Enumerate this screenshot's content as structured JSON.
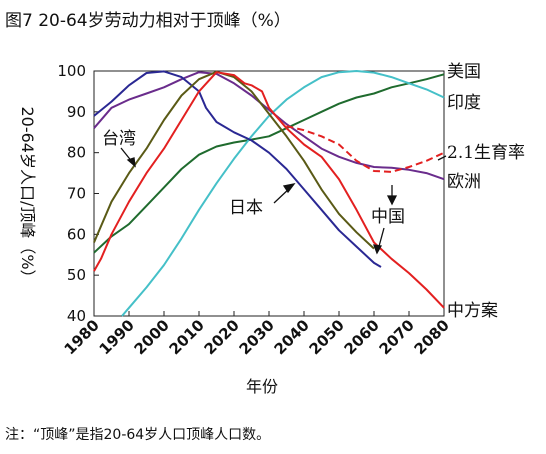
{
  "title": "图7 20-64岁劳动力相对于顶峰（%）",
  "note": "注：“顶峰”是指20-64岁人口顶峰人口数。",
  "chart_data": {
    "type": "line",
    "title": "图7 20-64岁劳动力相对于顶峰（%）",
    "xlabel": "年份",
    "ylabel": "20-64岁人口/顶峰（%）",
    "xlim": [
      1980,
      2080
    ],
    "ylim": [
      40,
      100
    ],
    "xticks": [
      "1980",
      "1990",
      "2000",
      "2010",
      "2020",
      "2030",
      "2040",
      "2050",
      "2060",
      "2070",
      "2080"
    ],
    "yticks": [
      "40",
      "50",
      "60",
      "70",
      "80",
      "90",
      "100"
    ],
    "grid": false,
    "series": [
      {
        "name": "美国",
        "color": "#1f6b2e",
        "dash": false,
        "points": [
          [
            1980,
            55.5
          ],
          [
            1985,
            59.5
          ],
          [
            1990,
            62.5
          ],
          [
            1995,
            67
          ],
          [
            2000,
            71.5
          ],
          [
            2005,
            76
          ],
          [
            2010,
            79.5
          ],
          [
            2015,
            81.5
          ],
          [
            2020,
            82.5
          ],
          [
            2025,
            83.2
          ],
          [
            2030,
            84
          ],
          [
            2035,
            86
          ],
          [
            2040,
            88
          ],
          [
            2045,
            90
          ],
          [
            2050,
            92
          ],
          [
            2055,
            93.5
          ],
          [
            2060,
            94.5
          ],
          [
            2065,
            96
          ],
          [
            2070,
            97
          ],
          [
            2075,
            98
          ],
          [
            2080,
            99.2
          ]
        ]
      },
      {
        "name": "印度",
        "color": "#45c0c8",
        "dash": false,
        "points": [
          [
            1988,
            40
          ],
          [
            1990,
            42
          ],
          [
            1995,
            47
          ],
          [
            2000,
            52.5
          ],
          [
            2005,
            59
          ],
          [
            2010,
            66
          ],
          [
            2015,
            72.5
          ],
          [
            2020,
            78.5
          ],
          [
            2025,
            84
          ],
          [
            2030,
            89
          ],
          [
            2035,
            93
          ],
          [
            2040,
            96
          ],
          [
            2045,
            98.5
          ],
          [
            2050,
            99.7
          ],
          [
            2055,
            100
          ],
          [
            2060,
            99.6
          ],
          [
            2065,
            98.5
          ],
          [
            2070,
            97
          ],
          [
            2075,
            95.5
          ],
          [
            2080,
            93.5
          ]
        ]
      },
      {
        "name": "欧洲",
        "color": "#6a2c8c",
        "dash": false,
        "points": [
          [
            1980,
            86
          ],
          [
            1985,
            91
          ],
          [
            1990,
            93
          ],
          [
            1995,
            94.5
          ],
          [
            2000,
            96
          ],
          [
            2005,
            98
          ],
          [
            2010,
            99.7
          ],
          [
            2015,
            99.3
          ],
          [
            2020,
            97
          ],
          [
            2025,
            94
          ],
          [
            2030,
            90.5
          ],
          [
            2035,
            87
          ],
          [
            2040,
            84
          ],
          [
            2045,
            81
          ],
          [
            2050,
            79
          ],
          [
            2055,
            77.5
          ],
          [
            2060,
            76.5
          ],
          [
            2065,
            76.3
          ],
          [
            2070,
            75.8
          ],
          [
            2075,
            75
          ],
          [
            2080,
            73.5
          ]
        ]
      },
      {
        "name": "日本",
        "color": "#2a2893",
        "dash": false,
        "points": [
          [
            1980,
            89
          ],
          [
            1985,
            92.5
          ],
          [
            1990,
            96.5
          ],
          [
            1995,
            99.5
          ],
          [
            2000,
            99.9
          ],
          [
            2005,
            98.5
          ],
          [
            2010,
            95
          ],
          [
            2012,
            91
          ],
          [
            2015,
            87.5
          ],
          [
            2020,
            85
          ],
          [
            2025,
            83
          ],
          [
            2030,
            80
          ],
          [
            2035,
            76
          ],
          [
            2040,
            71
          ],
          [
            2045,
            66
          ],
          [
            2050,
            61
          ],
          [
            2055,
            57
          ],
          [
            2060,
            53
          ],
          [
            2062,
            52
          ]
        ]
      },
      {
        "name": "台湾",
        "color": "#5a5a16",
        "dash": false,
        "points": [
          [
            1980,
            58
          ],
          [
            1985,
            68
          ],
          [
            1990,
            75
          ],
          [
            1995,
            81
          ],
          [
            2000,
            88
          ],
          [
            2005,
            94
          ],
          [
            2010,
            98
          ],
          [
            2015,
            99.8
          ],
          [
            2020,
            98.5
          ],
          [
            2025,
            95
          ],
          [
            2030,
            89.5
          ],
          [
            2035,
            84
          ],
          [
            2040,
            78
          ],
          [
            2045,
            71
          ],
          [
            2050,
            65
          ],
          [
            2055,
            60.5
          ],
          [
            2060,
            56.5
          ]
        ]
      },
      {
        "name": "中国",
        "color": "#e32020",
        "dash": false,
        "points": [
          [
            1980,
            51
          ],
          [
            1982,
            54
          ],
          [
            1985,
            60
          ],
          [
            1990,
            68
          ],
          [
            1995,
            75
          ],
          [
            2000,
            81
          ],
          [
            2005,
            88
          ],
          [
            2010,
            95
          ],
          [
            2015,
            99.7
          ],
          [
            2020,
            99
          ],
          [
            2023,
            97
          ],
          [
            2025,
            96.5
          ],
          [
            2028,
            95
          ],
          [
            2030,
            91
          ],
          [
            2035,
            86
          ],
          [
            2040,
            82
          ],
          [
            2045,
            79
          ],
          [
            2050,
            73.5
          ],
          [
            2055,
            66
          ],
          [
            2060,
            58
          ],
          [
            2065,
            54
          ],
          [
            2070,
            50.5
          ],
          [
            2075,
            46.5
          ],
          [
            2080,
            42
          ]
        ]
      },
      {
        "name": "2.1生育率",
        "color": "#e32020",
        "dash": true,
        "points": [
          [
            2035,
            86.5
          ],
          [
            2040,
            85.5
          ],
          [
            2045,
            84
          ],
          [
            2050,
            82
          ],
          [
            2055,
            78
          ],
          [
            2060,
            75.5
          ],
          [
            2065,
            75.3
          ],
          [
            2070,
            76.5
          ],
          [
            2075,
            78
          ],
          [
            2080,
            80
          ]
        ]
      }
    ],
    "annotations": [
      "台湾",
      "日本",
      "中国",
      "美国",
      "印度",
      "2.1生育率",
      "欧洲",
      "中方案"
    ]
  },
  "labels": {
    "usa": "美国",
    "india": "印度",
    "fert": "2.1生育率",
    "europe": "欧洲",
    "medium": "中方案",
    "taiwan": "台湾",
    "japan": "日本",
    "china": "中国"
  }
}
